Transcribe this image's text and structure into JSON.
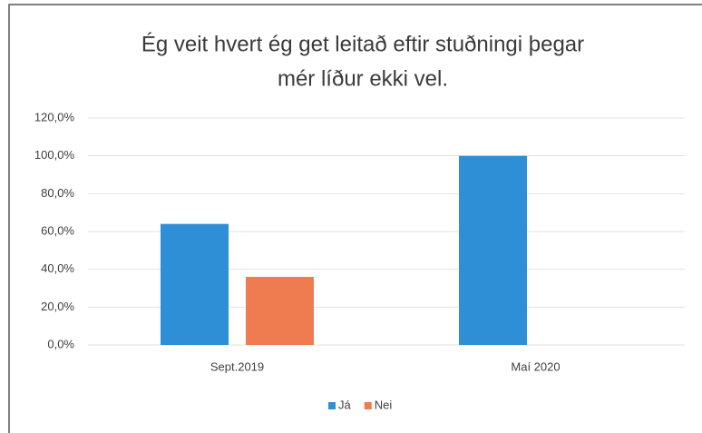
{
  "chart_data": {
    "type": "bar",
    "title": [
      "Ég veit hvert ég get leitað eftir stuðningi þegar",
      "mér líður ekki vel."
    ],
    "categories": [
      "Sept.2019",
      "Maí 2020"
    ],
    "series": [
      {
        "name": "Já",
        "color": "#2e8fd6",
        "values": [
          64,
          100
        ]
      },
      {
        "name": "Nei",
        "color": "#ee7c50",
        "values": [
          36,
          0
        ]
      }
    ],
    "ylim": [
      0,
      120
    ],
    "yticks": [
      {
        "value": 0,
        "label": "0,0%"
      },
      {
        "value": 20,
        "label": "20,0%"
      },
      {
        "value": 40,
        "label": "40,0%"
      },
      {
        "value": 60,
        "label": "60,0%"
      },
      {
        "value": 80,
        "label": "80,0%"
      },
      {
        "value": 100,
        "label": "100,0%"
      },
      {
        "value": 120,
        "label": "120,0%"
      }
    ],
    "grid": true,
    "legend": "bottom"
  }
}
